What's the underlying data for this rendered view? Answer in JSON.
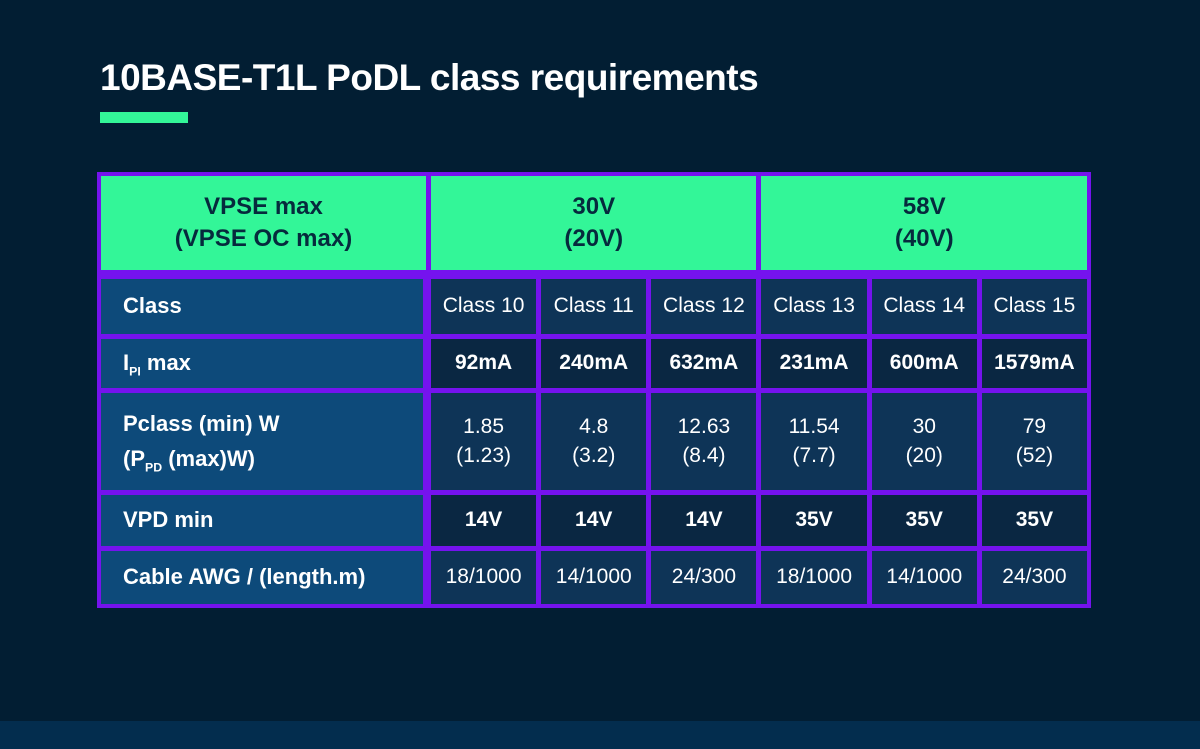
{
  "title": "10BASE-T1L PoDL class requirements",
  "colors": {
    "background": "#021e33",
    "accent_green": "#33f698",
    "border_purple": "#7513ee",
    "label_blue": "#0d4a7a",
    "cell_navy_light": "#0e3457",
    "cell_navy_dark": "#0a2742",
    "header_text": "#062a3d",
    "footer_band": "#032d4e",
    "text_white": "#ffffff"
  },
  "table": {
    "header": {
      "col1": {
        "line1": "VPSE max",
        "line2": "(VPSE OC max)"
      },
      "col2": {
        "line1": "30V",
        "line2": "(20V)"
      },
      "col3": {
        "line1": "58V",
        "line2": "(40V)"
      }
    },
    "rows": {
      "class": {
        "label": "Class",
        "values": [
          "Class 10",
          "Class 11",
          "Class 12",
          "Class 13",
          "Class 14",
          "Class 15"
        ]
      },
      "ipi": {
        "label_pre": "I",
        "label_sub": "PI",
        "label_post": " max",
        "values": [
          "92mA",
          "240mA",
          "632mA",
          "231mA",
          "600mA",
          "1579mA"
        ]
      },
      "pclass": {
        "label_line1": "Pclass (min) W",
        "label_pre": "(P",
        "label_sub": "PD",
        "label_post": " (max)W)",
        "values_top": [
          "1.85",
          "4.8",
          "12.63",
          "11.54",
          "30",
          "79"
        ],
        "values_bottom": [
          "(1.23)",
          "(3.2)",
          "(8.4)",
          "(7.7)",
          "(20)",
          "(52)"
        ]
      },
      "vpd": {
        "label": "VPD min",
        "values": [
          "14V",
          "14V",
          "14V",
          "35V",
          "35V",
          "35V"
        ]
      },
      "cable": {
        "label": "Cable AWG / (length.m)",
        "values": [
          "18/1000",
          "14/1000",
          "24/300",
          "18/1000",
          "14/1000",
          "24/300"
        ]
      }
    }
  }
}
